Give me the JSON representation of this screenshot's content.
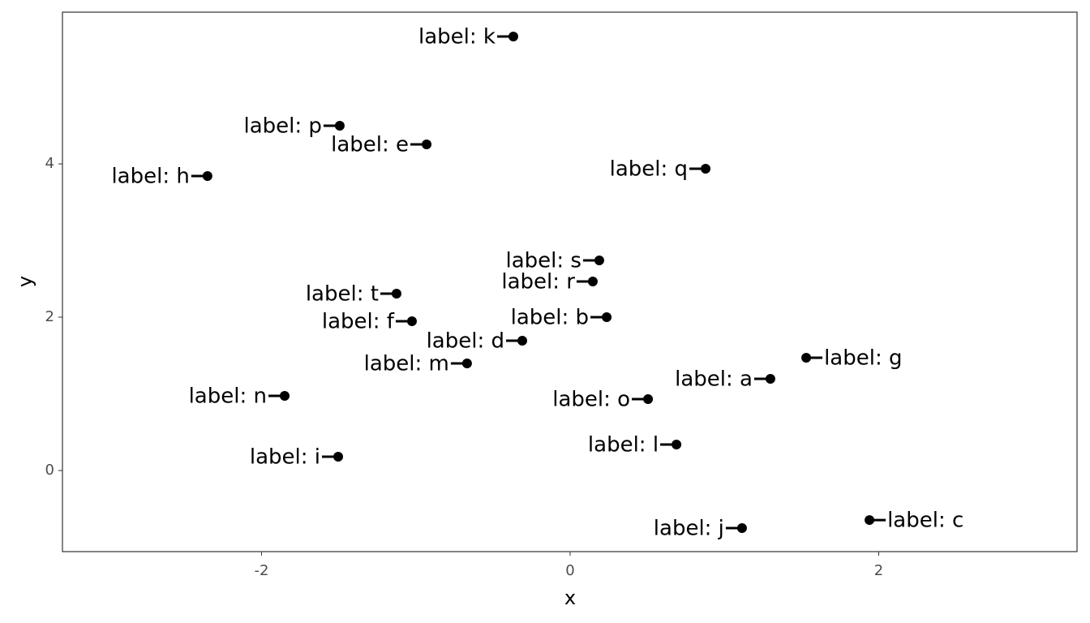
{
  "chart_data": {
    "type": "scatter",
    "x_label": "x",
    "y_label": "y",
    "labels": [
      "label: a",
      "label: b",
      "label: c",
      "label: d",
      "label: e",
      "label: f",
      "label: g",
      "label: h",
      "label: i",
      "label: j",
      "label: k",
      "label: l",
      "label: m",
      "label: n",
      "label: o",
      "label: p",
      "label: q",
      "label: r",
      "label: s",
      "label: t"
    ],
    "x": [
      1.298,
      0.237,
      1.94,
      -0.31,
      -0.93,
      -1.025,
      1.53,
      -2.35,
      -1.503,
      1.114,
      -0.368,
      0.689,
      -0.668,
      -1.85,
      0.505,
      -1.493,
      0.878,
      0.147,
      0.189,
      -1.125
    ],
    "y": [
      1.196,
      2.0,
      -0.646,
      1.693,
      4.254,
      1.947,
      1.471,
      3.841,
      0.18,
      -0.751,
      5.661,
      0.339,
      1.397,
      0.974,
      0.931,
      4.497,
      3.937,
      2.466,
      2.741,
      2.307
    ],
    "color": "#000000",
    "xlim": [
      -3.29,
      3.285
    ],
    "ylim": [
      -1.058,
      5.979
    ],
    "xticks": [
      -2,
      0,
      2
    ],
    "yticks": [
      0,
      2,
      4
    ],
    "grid": false
  }
}
